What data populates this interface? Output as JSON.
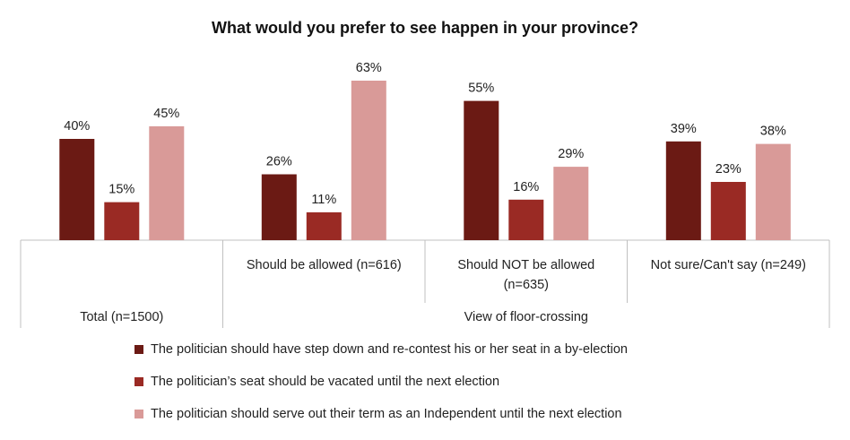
{
  "colors": {
    "series1": "#6b1a14",
    "series2": "#9a2a24",
    "series3": "#d99a98",
    "grid": "#c0c0c0",
    "text": "#222222"
  },
  "chart_data": {
    "type": "bar",
    "title": "What would you prefer to see happen in your province?",
    "categories": [
      [
        "Total (n=1500)"
      ],
      [
        "Should be allowed (n=616)"
      ],
      [
        "Should NOT be allowed",
        "(n=635)"
      ],
      [
        "Not sure/Can't say (n=249)"
      ]
    ],
    "groups": [
      {
        "label": "Total (n=1500)",
        "span": 1
      },
      {
        "label": "View of floor-crossing",
        "span": 3
      }
    ],
    "series": [
      {
        "name": "The politician should have step down and re-contest his or her seat in a by-election",
        "values": [
          40,
          26,
          55,
          39
        ]
      },
      {
        "name": "The politician’s seat should be vacated until the next election",
        "values": [
          15,
          11,
          16,
          23
        ]
      },
      {
        "name": "The politician should serve out their term as an Independent until the next election",
        "values": [
          45,
          63,
          29,
          38
        ]
      }
    ],
    "value_format": "{v}%",
    "ylim": [
      0,
      65
    ],
    "grid": false,
    "legend_position": "bottom"
  }
}
